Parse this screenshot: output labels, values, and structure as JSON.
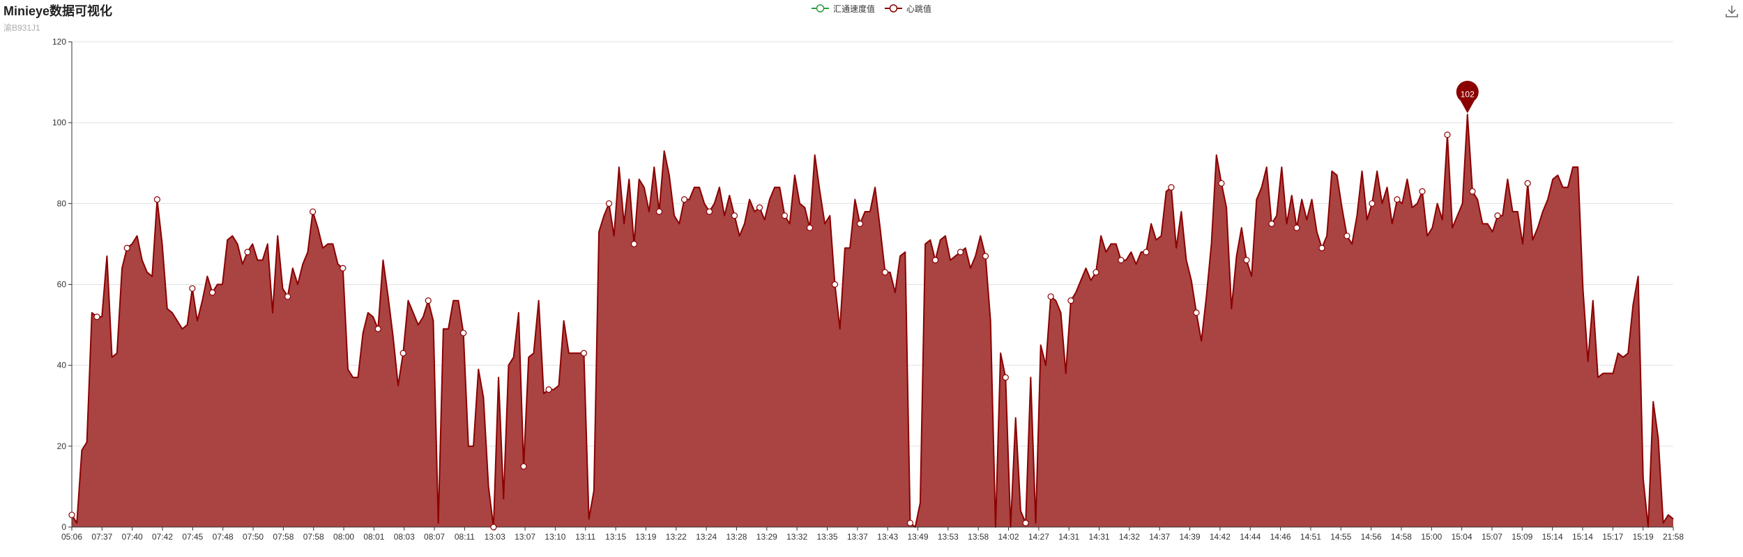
{
  "header": {
    "title": "Minieye数据可视化",
    "subtitle": "渝B931J1"
  },
  "toolbox": {
    "icon": "download-icon"
  },
  "colors": {
    "heart": "#8b0000",
    "heart_fill": "#a94442",
    "speed": "#2e9e3e"
  },
  "chart_data": {
    "type": "area",
    "title": "Minieye数据可视化",
    "subtitle": "渝B931J1",
    "legend": {
      "placement": "top-center",
      "entries": [
        "汇通速度值",
        "心跳值"
      ]
    },
    "grid": true,
    "ylim": [
      0,
      120
    ],
    "yticks": [
      "0",
      "20",
      "40",
      "60",
      "80",
      "100",
      "120"
    ],
    "xtick_labels": [
      "05:06",
      "07:37",
      "07:40",
      "07:42",
      "07:45",
      "07:48",
      "07:50",
      "07:58",
      "07:58",
      "08:00",
      "08:01",
      "08:03",
      "08:07",
      "08:11",
      "13:03",
      "13:07",
      "13:10",
      "13:11",
      "13:15",
      "13:19",
      "13:22",
      "13:24",
      "13:28",
      "13:29",
      "13:32",
      "13:35",
      "13:37",
      "13:43",
      "13:49",
      "13:53",
      "13:58",
      "14:02",
      "14:27",
      "14:31",
      "14:31",
      "14:32",
      "14:37",
      "14:39",
      "14:42",
      "14:44",
      "14:46",
      "14:51",
      "14:55",
      "14:56",
      "14:58",
      "15:00",
      "15:04",
      "15:07",
      "15:09",
      "15:14",
      "15:14",
      "15:17",
      "15:19",
      "21:58"
    ],
    "series": [
      {
        "name": "汇通速度值",
        "values": []
      },
      {
        "name": "心跳值",
        "values": [
          3,
          1,
          19,
          21,
          53,
          52,
          52,
          67,
          42,
          43,
          64,
          69,
          70,
          72,
          66,
          63,
          62,
          81,
          70,
          54,
          53,
          51,
          49,
          50,
          59,
          51,
          56,
          62,
          58,
          60,
          60,
          71,
          72,
          70,
          65,
          68,
          70,
          66,
          66,
          70,
          53,
          72,
          59,
          57,
          64,
          60,
          65,
          68,
          78,
          74,
          69,
          70,
          70,
          65,
          64,
          39,
          37,
          37,
          48,
          53,
          52,
          49,
          66,
          57,
          47,
          35,
          43,
          56,
          53,
          50,
          52,
          56,
          51,
          1,
          49,
          49,
          56,
          56,
          48,
          20,
          20,
          39,
          32,
          10,
          0,
          37,
          7,
          40,
          42,
          53,
          15,
          42,
          43,
          56,
          33,
          34,
          34,
          35,
          51,
          43,
          43,
          43,
          43,
          2,
          9,
          73,
          77,
          80,
          72,
          89,
          75,
          86,
          70,
          86,
          84,
          78,
          89,
          78,
          93,
          87,
          77,
          75,
          81,
          81,
          84,
          84,
          80,
          78,
          80,
          84,
          77,
          82,
          77,
          72,
          75,
          81,
          78,
          79,
          76,
          81,
          84,
          84,
          77,
          75,
          87,
          80,
          79,
          74,
          92,
          83,
          75,
          77,
          60,
          49,
          69,
          69,
          81,
          75,
          78,
          78,
          84,
          74,
          63,
          63,
          58,
          67,
          68,
          1,
          0,
          6,
          70,
          71,
          66,
          71,
          72,
          66,
          67,
          68,
          69,
          64,
          67,
          72,
          67,
          51,
          0,
          43,
          37,
          0,
          27,
          4,
          1,
          37,
          1,
          45,
          40,
          57,
          56,
          53,
          38,
          56,
          58,
          61,
          64,
          61,
          63,
          72,
          68,
          70,
          70,
          66,
          66,
          68,
          65,
          68,
          68,
          75,
          71,
          72,
          83,
          84,
          69,
          78,
          66,
          61,
          53,
          46,
          57,
          70,
          92,
          85,
          79,
          54,
          67,
          74,
          66,
          62,
          81,
          84,
          89,
          75,
          77,
          89,
          75,
          82,
          74,
          81,
          76,
          81,
          73,
          69,
          72,
          88,
          87,
          79,
          72,
          70,
          77,
          88,
          76,
          80,
          88,
          80,
          84,
          75,
          81,
          80,
          86,
          79,
          80,
          83,
          72,
          74,
          80,
          76,
          97,
          74,
          77,
          80,
          102,
          83,
          81,
          75,
          75,
          73,
          77,
          77,
          86,
          78,
          78,
          70,
          85,
          71,
          74,
          78,
          81,
          86,
          87,
          84,
          84,
          89,
          89,
          59,
          41,
          56,
          37,
          38,
          38,
          38,
          43,
          42,
          43,
          55,
          62,
          12,
          0,
          31,
          22,
          1,
          3,
          2
        ]
      }
    ],
    "point_markers": [
      0,
      5,
      11,
      17,
      24,
      28,
      35,
      43,
      48,
      54,
      61,
      66,
      71,
      78,
      84,
      90,
      95,
      102,
      107,
      112,
      117,
      122,
      127,
      132,
      137,
      142,
      147,
      152,
      157,
      162,
      167,
      172,
      177,
      182,
      186,
      190,
      195,
      199,
      204,
      209,
      214,
      219,
      224,
      229,
      234,
      239,
      244,
      249,
      254,
      259,
      264,
      269,
      274,
      279,
      284,
      290
    ],
    "annotation": {
      "label": "102",
      "type": "max-pin"
    }
  }
}
